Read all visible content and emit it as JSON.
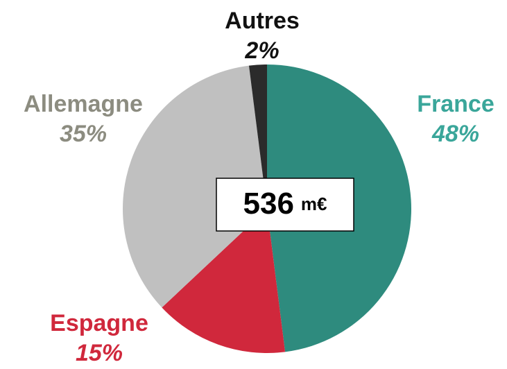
{
  "chart_data": {
    "type": "pie",
    "categories": [
      "France",
      "Espagne",
      "Allemagne",
      "Autres"
    ],
    "values": [
      48,
      15,
      35,
      2
    ],
    "value_labels": [
      "48%",
      "15%",
      "35%",
      "2%"
    ],
    "colors": [
      "#2e8b7e",
      "#d0283c",
      "#c0c0c0",
      "#2b2b2b"
    ],
    "label_colors": [
      "#3aa69a",
      "#d0283c",
      "#8c8c80",
      "#111111"
    ],
    "total": {
      "value": 536,
      "unit": "m€"
    }
  }
}
